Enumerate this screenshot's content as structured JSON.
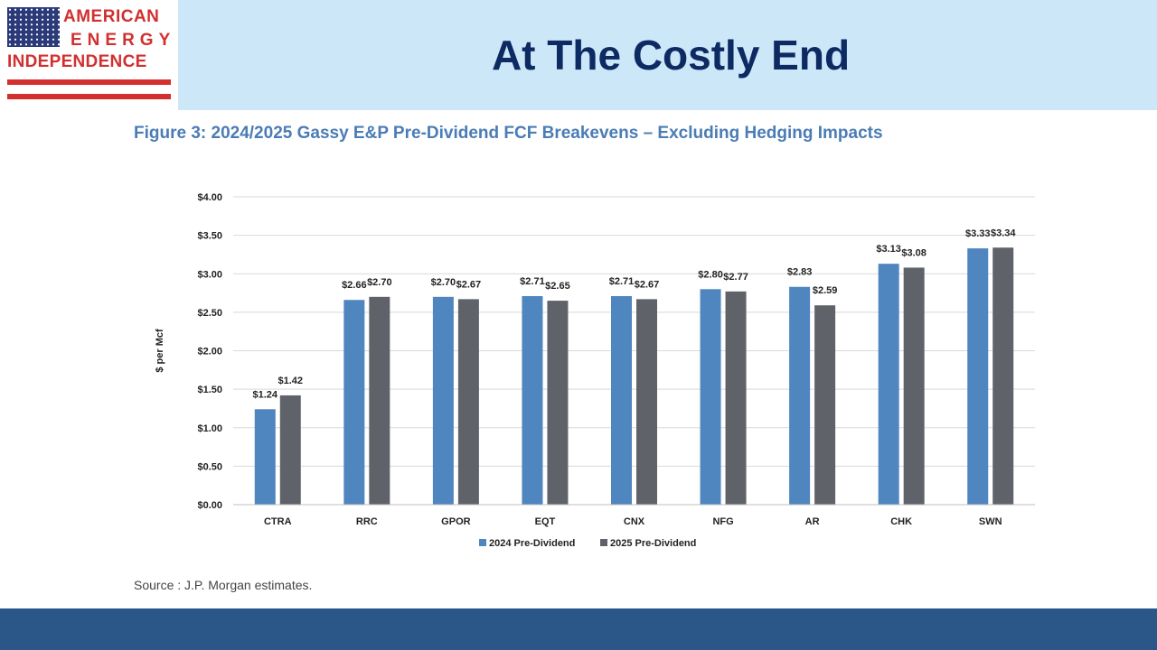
{
  "logo": {
    "line1": "AMERICAN",
    "line2": "ENERGY",
    "line3": "INDEPENDENCE",
    "icon": "us-flag-icon"
  },
  "slide": {
    "title": "At The Costly End",
    "figure_title": "Figure 3: 2024/2025 Gassy E&P Pre-Dividend FCF Breakevens – Excluding Hedging Impacts",
    "source": "Source : J.P. Morgan estimates."
  },
  "colors": {
    "series_2024": "#4f86bf",
    "series_2025": "#5f6369",
    "title_text": "#0d2a63",
    "title_band": "#cce8f8",
    "footer": "#2a5788",
    "logo_red": "#d32f2f",
    "figure_title": "#4a7cb5"
  },
  "chart_data": {
    "type": "bar",
    "title": "Figure 3: 2024/2025 Gassy E&P Pre-Dividend FCF Breakevens – Excluding Hedging Impacts",
    "xlabel": "",
    "ylabel": "$ per Mcf",
    "ylim": [
      0,
      4
    ],
    "yticks": [
      0,
      0.5,
      1,
      1.5,
      2,
      2.5,
      3,
      3.5,
      4
    ],
    "ytick_labels": [
      "$0.00",
      "$0.50",
      "$1.00",
      "$1.50",
      "$2.00",
      "$2.50",
      "$3.00",
      "$3.50",
      "$4.00"
    ],
    "grid": true,
    "legend": "bottom",
    "categories": [
      "CTRA",
      "RRC",
      "GPOR",
      "EQT",
      "CNX",
      "NFG",
      "AR",
      "CHK",
      "SWN"
    ],
    "series": [
      {
        "name": "2024 Pre-Dividend",
        "values": [
          1.24,
          2.66,
          2.7,
          2.71,
          2.71,
          2.8,
          2.83,
          3.13,
          3.33
        ],
        "labels": [
          "$1.24",
          "$2.66",
          "$2.70",
          "$2.71",
          "$2.71",
          "$2.80",
          "$2.83",
          "$3.13",
          "$3.33"
        ]
      },
      {
        "name": "2025 Pre-Dividend",
        "values": [
          1.42,
          2.7,
          2.67,
          2.65,
          2.67,
          2.77,
          2.59,
          3.08,
          3.34
        ],
        "labels": [
          "$1.42",
          "$2.70",
          "$2.67",
          "$2.65",
          "$2.67",
          "$2.77",
          "$2.59",
          "$3.08",
          "$3.34"
        ]
      }
    ]
  }
}
